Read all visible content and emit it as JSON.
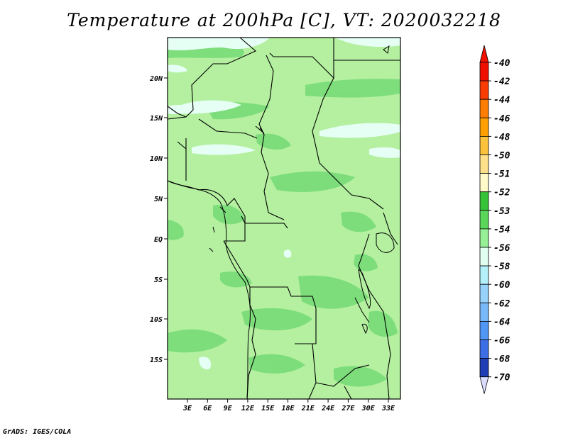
{
  "title": "Temperature at 200hPa [C], VT: 2020032218",
  "credit": "GrADS: IGES/COLA",
  "map": {
    "lat_labels": [
      "20N",
      "15N",
      "10N",
      "5N",
      "EQ",
      "5S",
      "10S",
      "15S"
    ],
    "lon_labels": [
      "3E",
      "6E",
      "9E",
      "12E",
      "15E",
      "18E",
      "21E",
      "24E",
      "27E",
      "30E",
      "33E"
    ]
  },
  "colorbar": {
    "levels": [
      {
        "label": "-40",
        "color": "#f01000"
      },
      {
        "label": "-42",
        "color": "#fa3c00"
      },
      {
        "label": "-44",
        "color": "#ff7d00"
      },
      {
        "label": "-46",
        "color": "#ffa000"
      },
      {
        "label": "-48",
        "color": "#fbc23c"
      },
      {
        "label": "-50",
        "color": "#fde18a"
      },
      {
        "label": "-51",
        "color": "#fffac8"
      },
      {
        "label": "-52",
        "color": "#37c337"
      },
      {
        "label": "-53",
        "color": "#5ad75a"
      },
      {
        "label": "-54",
        "color": "#96f096"
      },
      {
        "label": "-56",
        "color": "#e1fff0"
      },
      {
        "label": "-58",
        "color": "#b4f0fa"
      },
      {
        "label": "-60",
        "color": "#96d2fa"
      },
      {
        "label": "-62",
        "color": "#78b9fa"
      },
      {
        "label": "-64",
        "color": "#5096f5"
      },
      {
        "label": "-66",
        "color": "#3c6ee6"
      },
      {
        "label": "-68",
        "color": "#1e3cb4"
      },
      {
        "label": "-70",
        "color": "#0a1e78"
      }
    ],
    "bottom_cap_color": "#dcdcff",
    "top_cap_color": "#c80000"
  },
  "field_colors": {
    "base": "#b4f0a0",
    "warm": "#78dc78",
    "cold": "#e6fff5"
  }
}
